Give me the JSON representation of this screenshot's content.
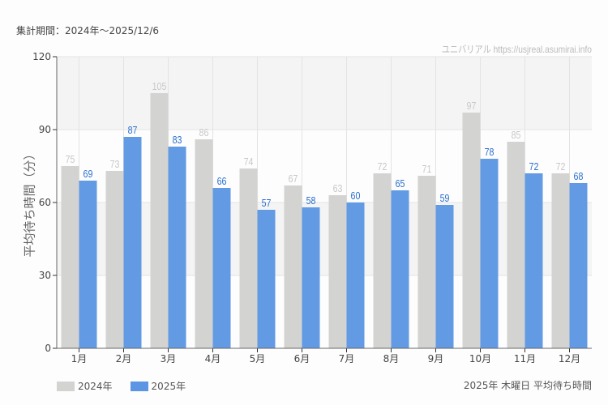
{
  "header": {
    "period": "集計期間：2024年～2025/12/6",
    "watermark": "ユニバリアル  https://usjreal.asumirai.info"
  },
  "footer": {
    "caption": "2025年 木曜日 平均待ち時間"
  },
  "colors": {
    "series_2024": "#d3d4d2",
    "series_2025": "#5b95e3",
    "label_2024": "#c8c8c8",
    "label_2025": "#2b6fd0",
    "grid": "#e3e3e3",
    "band": "#f3f4f3",
    "axis": "#666666"
  },
  "chart_data": {
    "type": "bar",
    "title": "2025年 木曜日 平均待ち時間",
    "subtitle": "集計期間：2024年～2025/12/6",
    "xlabel": "",
    "ylabel": "平均待ち時間（分）",
    "ylim": [
      0,
      120
    ],
    "yticks": [
      0,
      30,
      60,
      90,
      120
    ],
    "grid": true,
    "legend_position": "bottom-left",
    "categories": [
      "1月",
      "2月",
      "3月",
      "4月",
      "5月",
      "6月",
      "7月",
      "8月",
      "9月",
      "10月",
      "11月",
      "12月"
    ],
    "series": [
      {
        "name": "2024年",
        "values": [
          75,
          73,
          105,
          86,
          74,
          67,
          63,
          72,
          71,
          97,
          85,
          72
        ]
      },
      {
        "name": "2025年",
        "values": [
          69,
          87,
          83,
          66,
          57,
          58,
          60,
          65,
          59,
          78,
          72,
          68
        ]
      }
    ]
  }
}
